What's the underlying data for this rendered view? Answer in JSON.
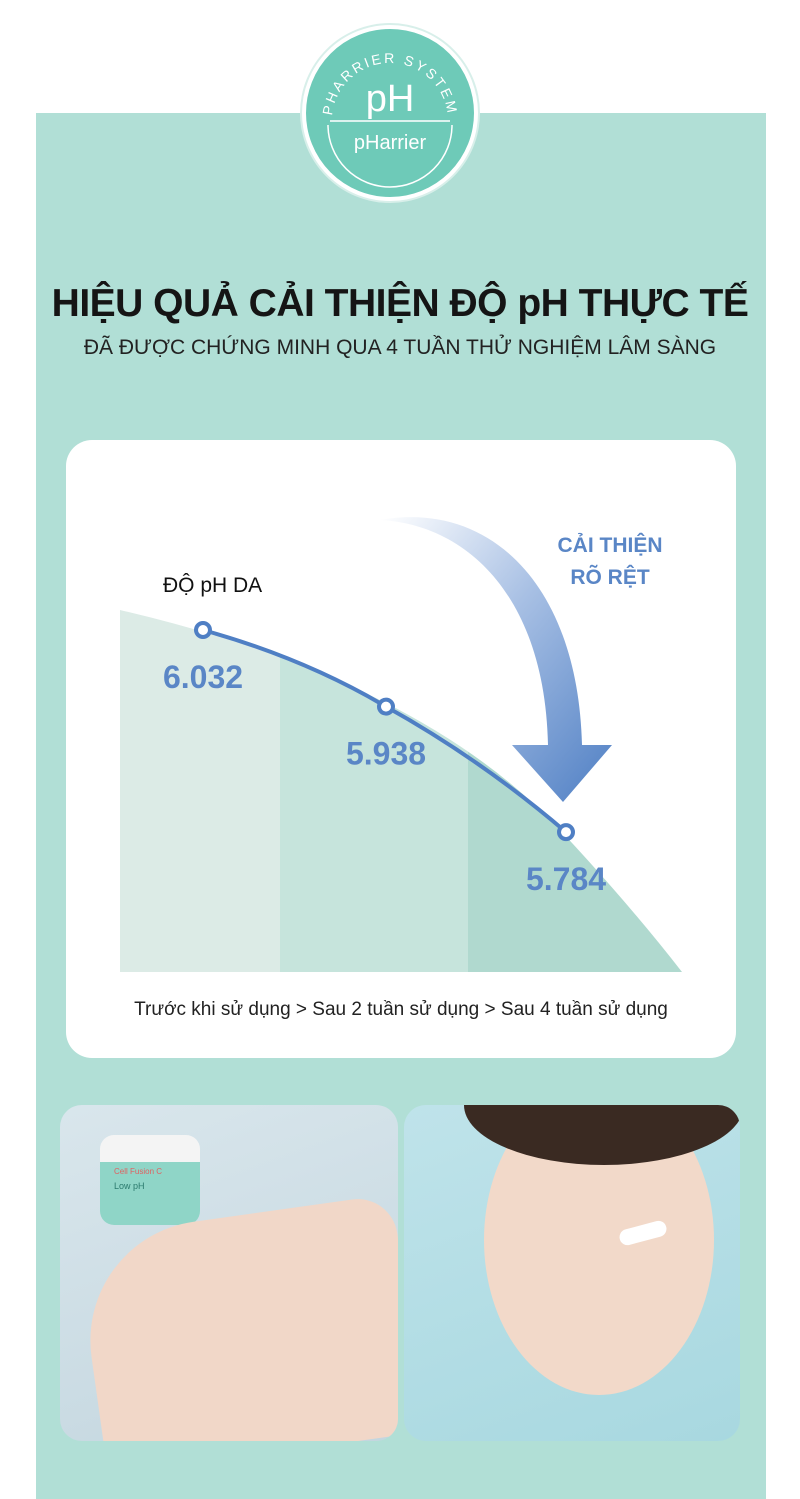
{
  "badge": {
    "arc_text": "PHARRIER SYSTEM",
    "symbol": "pH",
    "brand": "pHarrier"
  },
  "title": "HIỆU QUẢ CẢI THIỆN ĐỘ pH THỰC TẾ",
  "subtitle": "ĐÃ ĐƯỢC CHỨNG MINH QUA 4 TUẦN THỬ NGHIỆM LÂM SÀNG",
  "colors": {
    "panel": "#b1dfd6",
    "badge": "#6ecab8",
    "accent_blue": "#4f7fc4",
    "col1": "#dcebe6",
    "col2": "#c6e4dc",
    "col3": "#b0d9cf"
  },
  "chart_data": {
    "type": "line",
    "ylabel": "ĐỘ pH DA",
    "categories": [
      "Trước khi sử dụng",
      "Sau 2 tuần sử dụng",
      "Sau 4 tuần sử dụng"
    ],
    "values": [
      6.032,
      5.938,
      5.784
    ],
    "data_labels": [
      "6.032",
      "5.938",
      "5.784"
    ],
    "xlabel": "Trước khi sử dụng > Sau 2 tuần sử dụng > Sau 4 tuần sử dụng",
    "annotation": [
      "CẢI THIỆN",
      "RÕ RỆT"
    ],
    "grid": false
  },
  "photos": [
    {
      "subject": "hand-with-cream-jar",
      "jar_text": [
        "Cell Fusion C",
        "Low pH"
      ]
    },
    {
      "subject": "woman-applying-cream"
    }
  ]
}
